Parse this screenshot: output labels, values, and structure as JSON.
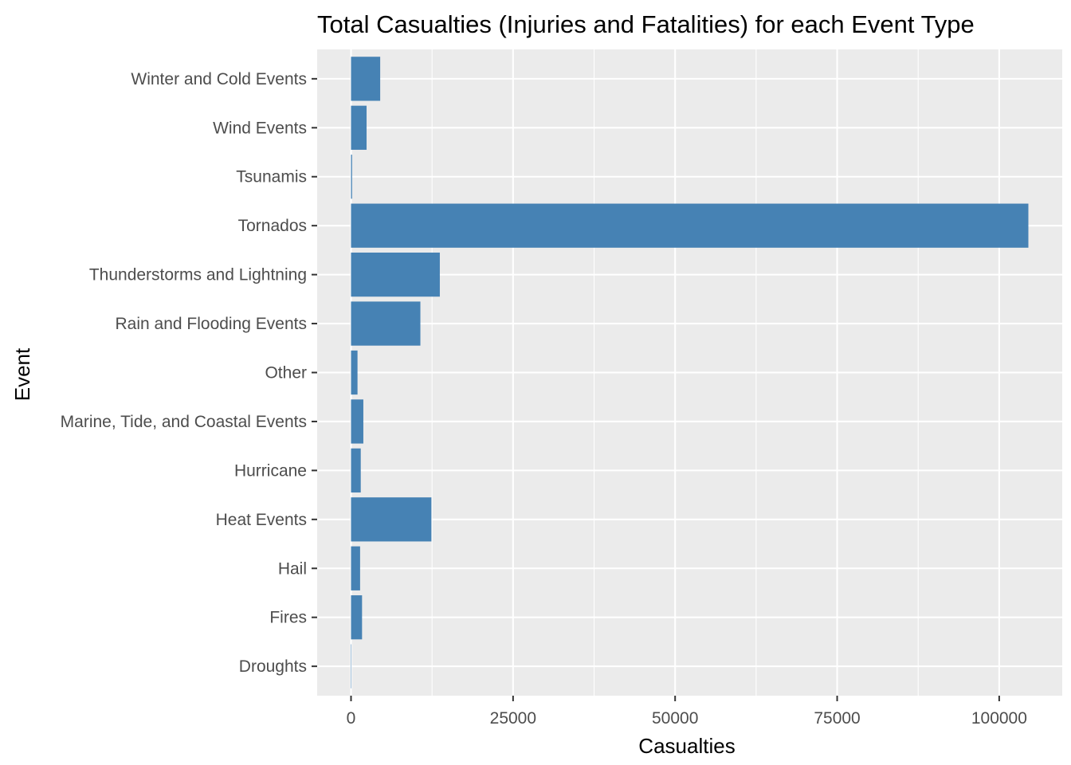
{
  "chart_data": {
    "type": "bar",
    "orientation": "horizontal",
    "title": "Total Casualties (Injuries and Fatalities) for each Event Type",
    "xlabel": "Casualties",
    "ylabel": "Event",
    "categories": [
      "Droughts",
      "Fires",
      "Hail",
      "Heat Events",
      "Hurricane",
      "Marine, Tide, and Coastal Events",
      "Other",
      "Rain and Flooding Events",
      "Thunderstorms and Lightning",
      "Tornados",
      "Tsunamis",
      "Wind Events",
      "Winter and Cold Events"
    ],
    "values": [
      4,
      1700,
      1400,
      12400,
      1500,
      1900,
      1000,
      10700,
      13700,
      104500,
      160,
      2400,
      4500
    ],
    "xlim": [
      -5225,
      109725
    ],
    "x_ticks": [
      0,
      25000,
      50000,
      75000,
      100000
    ],
    "x_tick_labels": [
      "0",
      "25000",
      "50000",
      "75000",
      "100000"
    ],
    "grid": true,
    "colors": {
      "bar": "#4682b4",
      "panel": "#ebebeb",
      "grid": "#ffffff"
    }
  }
}
